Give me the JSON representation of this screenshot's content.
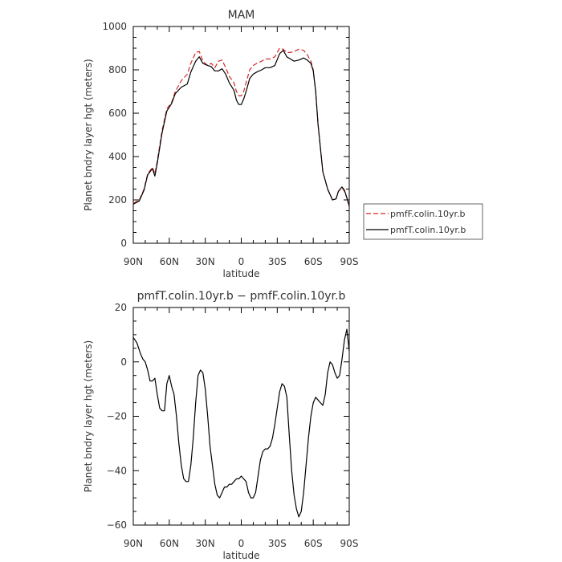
{
  "chart_data": [
    {
      "type": "line",
      "title": "MAM",
      "xlabel": "latitude",
      "ylabel": "Planet bndry layer hgt (meters)",
      "xlim": [
        -90,
        90
      ],
      "ylim": [
        0,
        1000
      ],
      "xticks": [
        -90,
        -60,
        -30,
        0,
        30,
        60,
        90
      ],
      "xtick_labels": [
        "90N",
        "60N",
        "30N",
        "0",
        "30S",
        "60S",
        "90S"
      ],
      "yticks": [
        0,
        200,
        400,
        600,
        800,
        1000
      ],
      "ytick_labels": [
        "0",
        "200",
        "400",
        "600",
        "800",
        "1000"
      ],
      "legend_position": "right",
      "series": [
        {
          "name": "pmfF.colin.10yr.b",
          "color": "#d62728",
          "dash": "dashed",
          "x": [
            -90,
            -85,
            -81,
            -78,
            -74,
            -72,
            -70,
            -66,
            -62,
            -58,
            -55,
            -50,
            -45,
            -42,
            -38,
            -35,
            -32,
            -28,
            -25,
            -22,
            -19,
            -16,
            -13,
            -10,
            -6,
            -4,
            -2,
            0,
            2,
            4,
            7,
            10,
            13,
            17,
            20,
            24,
            28,
            32,
            35,
            38,
            41,
            44,
            48,
            52,
            55,
            58,
            60,
            62,
            64,
            68,
            72,
            76,
            79,
            81,
            84,
            86,
            88,
            90
          ],
          "y": [
            185,
            200,
            250,
            320,
            350,
            320,
            380,
            520,
            620,
            650,
            700,
            750,
            780,
            830,
            880,
            885,
            840,
            820,
            830,
            810,
            840,
            845,
            810,
            770,
            740,
            700,
            680,
            680,
            700,
            740,
            800,
            820,
            830,
            840,
            850,
            850,
            860,
            900,
            895,
            880,
            880,
            885,
            895,
            890,
            870,
            840,
            800,
            700,
            550,
            330,
            250,
            200,
            205,
            240,
            255,
            240,
            210,
            175
          ]
        },
        {
          "name": "pmfT.colin.10yr.b",
          "color": "#000000",
          "dash": "solid",
          "x": [
            -90,
            -85,
            -81,
            -78,
            -74,
            -72,
            -70,
            -66,
            -62,
            -58,
            -55,
            -50,
            -45,
            -42,
            -38,
            -35,
            -32,
            -28,
            -25,
            -22,
            -19,
            -16,
            -13,
            -10,
            -6,
            -4,
            -2,
            0,
            2,
            4,
            7,
            10,
            13,
            17,
            20,
            24,
            28,
            32,
            35,
            38,
            41,
            44,
            48,
            52,
            55,
            58,
            60,
            62,
            64,
            68,
            72,
            76,
            79,
            81,
            84,
            86,
            88,
            90
          ],
          "y": [
            180,
            195,
            245,
            315,
            345,
            310,
            370,
            510,
            610,
            645,
            690,
            720,
            735,
            790,
            840,
            860,
            830,
            820,
            815,
            795,
            795,
            805,
            780,
            740,
            705,
            660,
            640,
            640,
            665,
            700,
            760,
            780,
            790,
            800,
            810,
            810,
            820,
            875,
            890,
            860,
            850,
            840,
            845,
            855,
            845,
            830,
            795,
            700,
            550,
            330,
            250,
            200,
            205,
            240,
            260,
            245,
            210,
            170
          ]
        }
      ]
    },
    {
      "type": "line",
      "title": "pmfT.colin.10yr.b − pmfF.colin.10yr.b",
      "xlabel": "latitude",
      "ylabel": "Planet bndry layer hgt (meters)",
      "xlim": [
        -90,
        90
      ],
      "ylim": [
        -60,
        20
      ],
      "xticks": [
        -90,
        -60,
        -30,
        0,
        30,
        60,
        90
      ],
      "xtick_labels": [
        "90N",
        "60N",
        "30N",
        "0",
        "30S",
        "60S",
        "90S"
      ],
      "yticks": [
        -60,
        -40,
        -20,
        0,
        20
      ],
      "ytick_labels": [
        "−60",
        "−40",
        "−20",
        "0",
        "20"
      ],
      "series": [
        {
          "name": "",
          "color": "#000000",
          "dash": "solid",
          "x": [
            -90,
            -87,
            -84,
            -82,
            -80,
            -78,
            -76,
            -74,
            -72,
            -70,
            -68,
            -66,
            -64,
            -62,
            -60,
            -58,
            -56,
            -54,
            -52,
            -50,
            -48,
            -46,
            -44,
            -42,
            -40,
            -38,
            -36,
            -34,
            -32,
            -30,
            -28,
            -26,
            -24,
            -22,
            -20,
            -18,
            -16,
            -14,
            -12,
            -10,
            -8,
            -6,
            -4,
            -2,
            0,
            2,
            4,
            6,
            8,
            10,
            12,
            14,
            16,
            18,
            20,
            22,
            24,
            26,
            28,
            30,
            32,
            34,
            36,
            38,
            40,
            42,
            44,
            46,
            48,
            50,
            52,
            54,
            56,
            58,
            60,
            62,
            64,
            66,
            68,
            70,
            72,
            74,
            76,
            78,
            80,
            82,
            84,
            86,
            88,
            90
          ],
          "y": [
            9,
            7,
            3,
            1,
            0,
            -3,
            -7,
            -7,
            -6,
            -12,
            -17,
            -18,
            -18,
            -8,
            -5,
            -9,
            -12,
            -20,
            -30,
            -38,
            -43,
            -44,
            -44,
            -38,
            -28,
            -15,
            -5,
            -3,
            -4,
            -10,
            -20,
            -31,
            -38,
            -45,
            -49,
            -50,
            -48,
            -46,
            -46,
            -45,
            -45,
            -44,
            -43,
            -43,
            -42,
            -43,
            -44,
            -48,
            -50,
            -50,
            -48,
            -42,
            -36,
            -33,
            -32,
            -32,
            -31,
            -28,
            -23,
            -17,
            -11,
            -8,
            -9,
            -13,
            -27,
            -40,
            -49,
            -54,
            -57,
            -55,
            -48,
            -38,
            -28,
            -20,
            -15,
            -13,
            -14,
            -15,
            -16,
            -12,
            -4,
            0,
            -1,
            -4,
            -6,
            -5,
            1,
            8,
            12,
            4
          ]
        }
      ]
    }
  ]
}
